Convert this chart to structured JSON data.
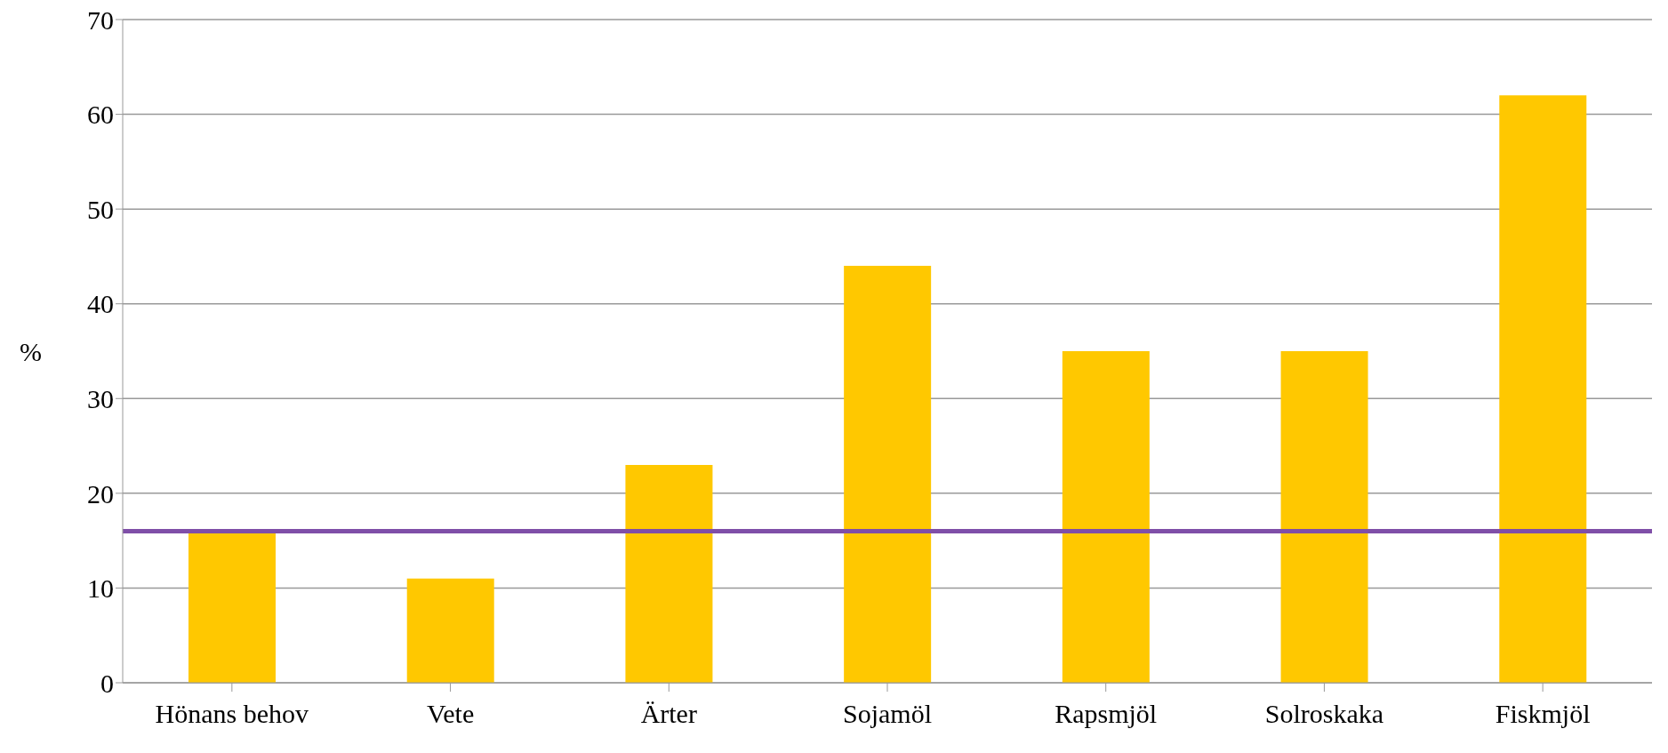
{
  "chart_data": {
    "type": "bar",
    "ylabel": "%",
    "categories": [
      "Hönans behov",
      "Vete",
      "Ärter",
      "Sojamöl",
      "Rapsmjöl",
      "Solroskaka",
      "Fiskmjöl"
    ],
    "values": [
      16,
      11,
      23,
      44,
      35,
      35,
      62
    ],
    "color": "#ffc800",
    "ylim": [
      0,
      70
    ],
    "yticks": [
      0,
      10,
      20,
      30,
      40,
      50,
      60,
      70
    ],
    "grid": "y",
    "ref_lines": [
      {
        "axis": "y",
        "value": 16,
        "color": "#7f4fa8"
      }
    ]
  }
}
